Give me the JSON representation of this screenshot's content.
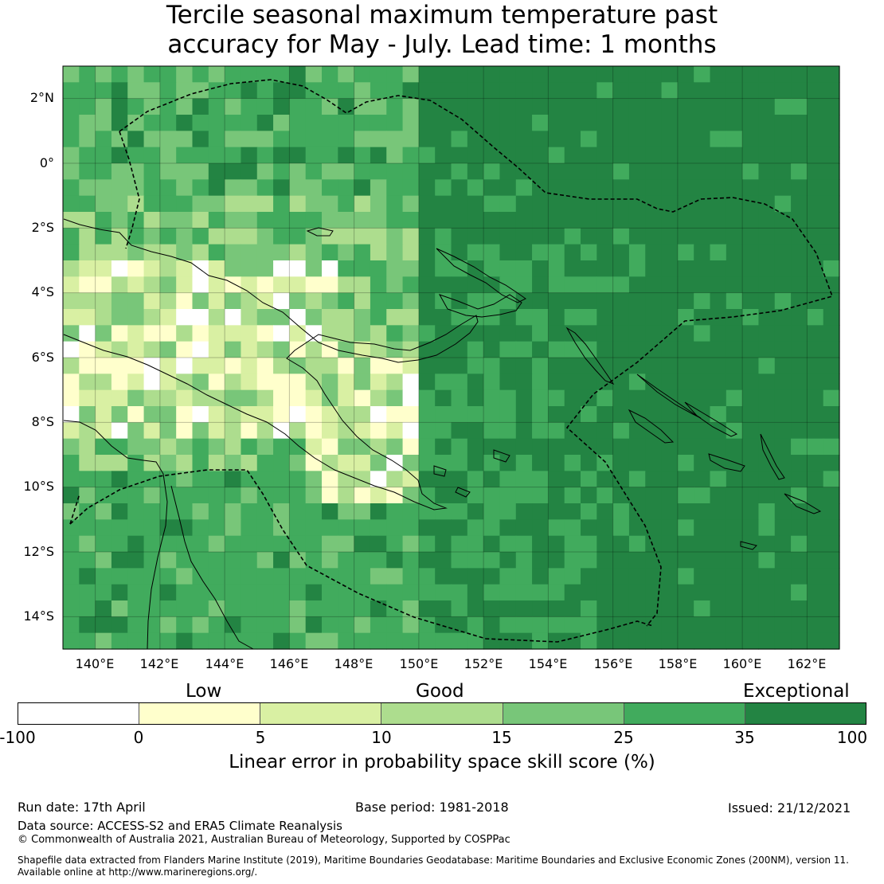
{
  "title": {
    "line1": "Tercile seasonal maximum temperature past",
    "line2": "accuracy for May - July. Lead time: 1 months"
  },
  "map": {
    "lat_labels": [
      "2°N",
      "0°",
      "2°S",
      "4°S",
      "6°S",
      "8°S",
      "10°S",
      "12°S",
      "14°S"
    ],
    "lon_labels": [
      "140°E",
      "142°E",
      "144°E",
      "146°E",
      "148°E",
      "150°E",
      "152°E",
      "154°E",
      "156°E",
      "158°E",
      "160°E",
      "162°E"
    ],
    "extent": {
      "lon_min": 139,
      "lon_max": 163,
      "lat_min": -15,
      "lat_max": 3
    }
  },
  "colorbar": {
    "categories": [
      "Low",
      "Good",
      "Exceptional"
    ],
    "ticks": [
      "-100",
      "0",
      "5",
      "10",
      "15",
      "25",
      "35",
      "100"
    ],
    "colors": [
      "#ffffff",
      "#ffffcc",
      "#d9f0a3",
      "#addd8e",
      "#78c679",
      "#41ab5d",
      "#238443"
    ],
    "label": "Linear error in probability space skill score (%)"
  },
  "footer": {
    "run_date": "Run date: 17th April",
    "base_period": "Base period: 1981-2018",
    "issued": "Issued: 21/12/2021",
    "data_source": "Data source: ACCESS-S2 and ERA5 Climate Reanalysis",
    "copyright": "© Commonwealth of Australia 2021, Australian Bureau of Meteorology, Supported by COSPPac",
    "shapefile_line1": "Shapefile data extracted from Flanders Marine Institute (2019), Maritime Boundaries Geodatabase: Maritime Boundaries and Exclusive Economic Zones (200NM), version 11.",
    "shapefile_line2": "Available online at http://www.marineregions.org/."
  }
}
